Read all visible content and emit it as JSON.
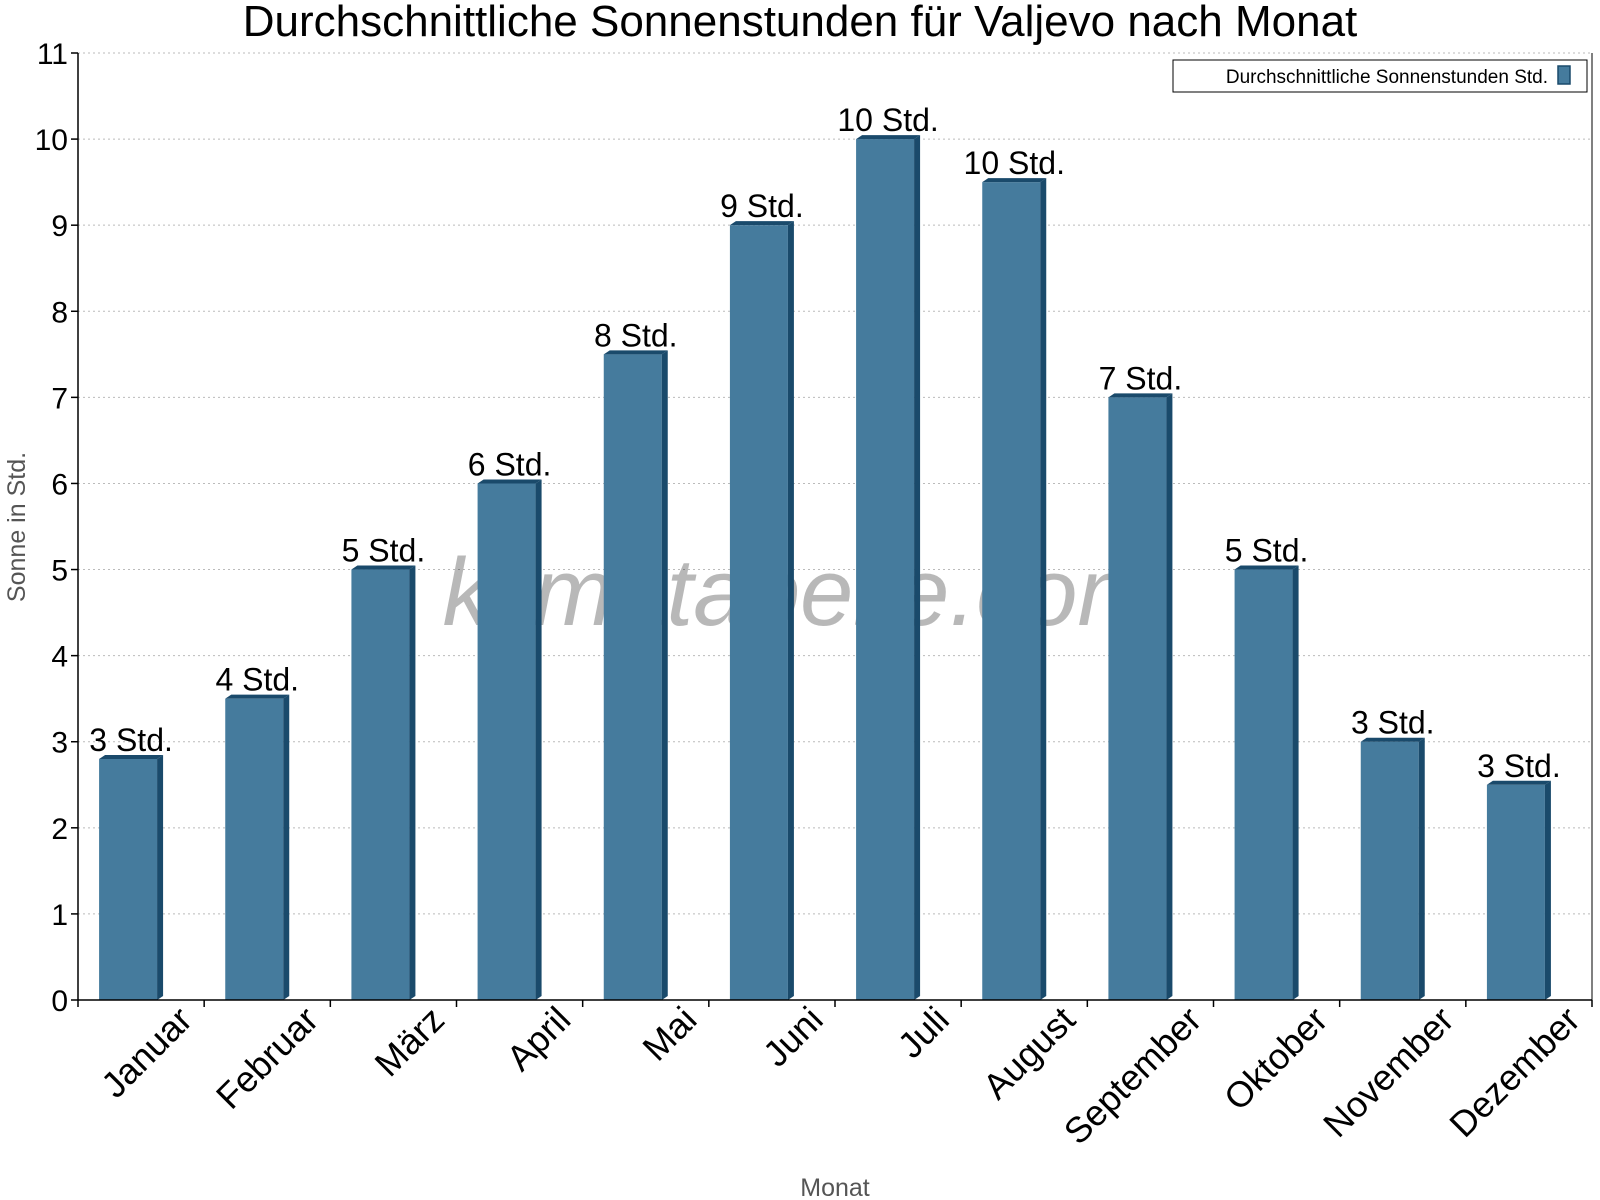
{
  "chart_data": {
    "type": "bar",
    "title": "Durchschnittliche Sonnenstunden für Valjevo nach Monat",
    "xlabel": "Monat",
    "ylabel": "Sonne in Std.",
    "ylim": [
      0,
      11
    ],
    "yticks": [
      0,
      1,
      2,
      3,
      4,
      5,
      6,
      7,
      8,
      9,
      10,
      11
    ],
    "grid": true,
    "legend_position": "top-right",
    "categories": [
      "Januar",
      "Februar",
      "März",
      "April",
      "Mai",
      "Juni",
      "Juli",
      "August",
      "September",
      "Oktober",
      "November",
      "Dezember"
    ],
    "series": [
      {
        "name": "Durchschnittliche Sonnenstunden Std.",
        "color": "#457b9d",
        "values": [
          2.8,
          3.5,
          5.0,
          6.0,
          7.5,
          9.0,
          10.0,
          9.5,
          7.0,
          5.0,
          3.0,
          2.5
        ],
        "data_labels": [
          "3 Std.",
          "4 Std.",
          "5 Std.",
          "6 Std.",
          "8 Std.",
          "9 Std.",
          "10 Std.",
          "10 Std.",
          "7 Std.",
          "5 Std.",
          "3 Std.",
          "3 Std."
        ]
      }
    ],
    "watermark": "klimatabelle.com"
  }
}
